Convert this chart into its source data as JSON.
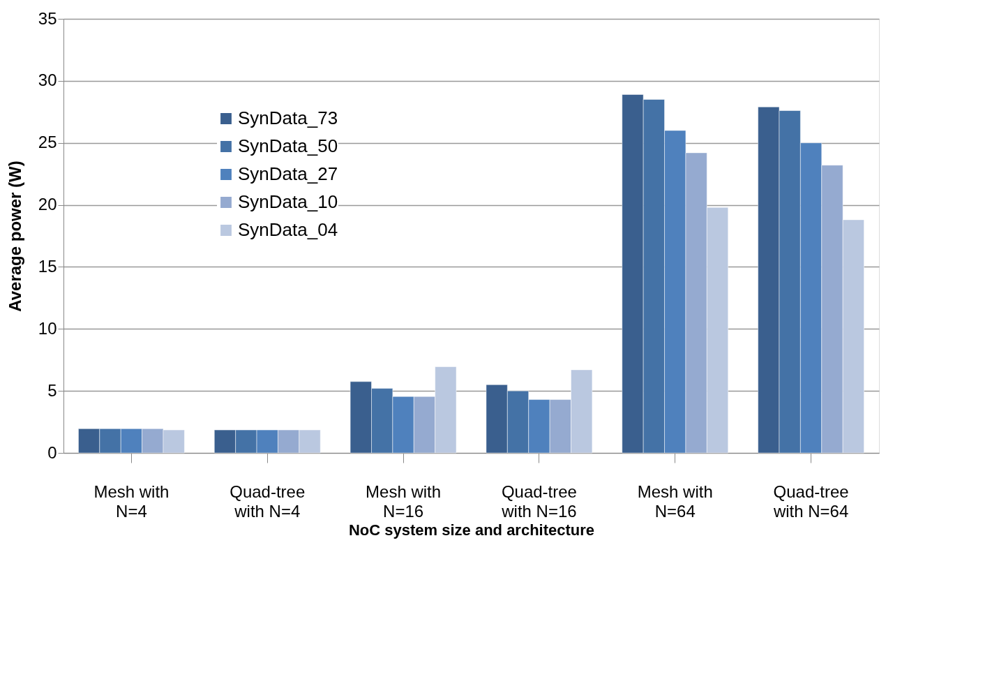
{
  "chart_data": {
    "type": "bar",
    "xlabel": "NoC system size and architecture",
    "ylabel": "Average power (W)",
    "categories": [
      "Mesh with\nN=4",
      "Quad-tree\nwith N=4",
      "Mesh with\nN=16",
      "Quad-tree\nwith N=16",
      "Mesh with\nN=64",
      "Quad-tree\nwith N=64"
    ],
    "series": [
      {
        "name": "SynData_73",
        "color": "#3a5f8e",
        "values": [
          1.95,
          1.85,
          5.75,
          5.5,
          28.9,
          27.9
        ]
      },
      {
        "name": "SynData_50",
        "color": "#4472a6",
        "values": [
          1.95,
          1.85,
          5.2,
          5.0,
          28.5,
          27.6
        ]
      },
      {
        "name": "SynData_27",
        "color": "#4f81bd",
        "values": [
          1.95,
          1.85,
          4.55,
          4.3,
          26.0,
          25.0
        ]
      },
      {
        "name": "SynData_10",
        "color": "#95aad0",
        "values": [
          1.95,
          1.85,
          4.55,
          4.3,
          24.2,
          23.2
        ]
      },
      {
        "name": "SynData_04",
        "color": "#bac8e0",
        "values": [
          1.85,
          1.85,
          6.95,
          6.7,
          19.8,
          18.8
        ]
      }
    ],
    "ylim": [
      0,
      35
    ],
    "yticks": [
      0,
      5,
      10,
      15,
      20,
      25,
      30,
      35
    ],
    "grid": "y",
    "legend": "top left"
  }
}
